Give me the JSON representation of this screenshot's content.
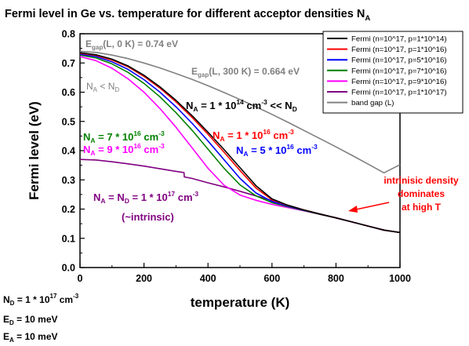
{
  "chart_data": {
    "type": "line",
    "title": "Fermi level in Ge vs. temperature for different acceptor densities N",
    "title_sub": "A",
    "xlabel": "temperature (K)",
    "ylabel": "Fermi level (eV)",
    "xlim": [
      0,
      1000
    ],
    "ylim": [
      0.0,
      0.8
    ],
    "x_ticks": [
      "0",
      "200",
      "400",
      "600",
      "800",
      "1000"
    ],
    "y_ticks": [
      "0.0",
      "0.1",
      "0.2",
      "0.3",
      "0.4",
      "0.5",
      "0.6",
      "0.7",
      "0.8"
    ],
    "grid": false,
    "legend_position": "top-right",
    "series": [
      {
        "name": "Fermi (n=10^17, p=1*10^14)",
        "color": "#000000",
        "x": [
          0,
          50,
          100,
          150,
          200,
          250,
          300,
          350,
          400,
          450,
          500,
          550,
          600,
          650,
          700,
          750,
          800,
          850,
          900,
          950,
          1000
        ],
        "y": [
          0.735,
          0.728,
          0.713,
          0.69,
          0.658,
          0.618,
          0.572,
          0.52,
          0.463,
          0.404,
          0.342,
          0.28,
          0.235,
          0.213,
          0.197,
          0.183,
          0.17,
          0.156,
          0.142,
          0.128,
          0.12
        ]
      },
      {
        "name": "Fermi (n=10^17, p=1*10^16)",
        "color": "#ff0000",
        "x": [
          0,
          50,
          100,
          150,
          200,
          250,
          300,
          350,
          400,
          450,
          500,
          550,
          600,
          650,
          700,
          750,
          800,
          850,
          900,
          950,
          1000
        ],
        "y": [
          0.733,
          0.726,
          0.71,
          0.687,
          0.654,
          0.614,
          0.567,
          0.514,
          0.456,
          0.395,
          0.332,
          0.272,
          0.232,
          0.212,
          0.197,
          0.183,
          0.17,
          0.156,
          0.142,
          0.128,
          0.12
        ]
      },
      {
        "name": "Fermi (n=10^17, p=5*10^16)",
        "color": "#0000ff",
        "x": [
          0,
          50,
          100,
          150,
          200,
          250,
          300,
          350,
          400,
          450,
          500,
          550,
          600,
          650,
          700,
          750,
          800,
          850,
          900,
          950,
          1000
        ],
        "y": [
          0.73,
          0.722,
          0.704,
          0.678,
          0.643,
          0.6,
          0.55,
          0.494,
          0.433,
          0.369,
          0.305,
          0.255,
          0.226,
          0.21,
          0.196,
          0.183,
          0.17,
          0.156,
          0.142,
          0.128,
          0.12
        ]
      },
      {
        "name": "Fermi (n=10^17, p=7*10^16)",
        "color": "#008000",
        "x": [
          0,
          50,
          100,
          150,
          200,
          250,
          300,
          350,
          400,
          450,
          500,
          550,
          600,
          650,
          700,
          750,
          800,
          850,
          900,
          950,
          1000
        ],
        "y": [
          0.727,
          0.717,
          0.697,
          0.668,
          0.63,
          0.584,
          0.53,
          0.47,
          0.405,
          0.34,
          0.283,
          0.245,
          0.222,
          0.208,
          0.195,
          0.182,
          0.17,
          0.156,
          0.142,
          0.128,
          0.12
        ]
      },
      {
        "name": "Fermi (n=10^17, p=9*10^16)",
        "color": "#ff00ff",
        "x": [
          0,
          50,
          100,
          150,
          200,
          250,
          300,
          350,
          400,
          450,
          500,
          550,
          600,
          650,
          700,
          750,
          800,
          850,
          900,
          950,
          1000
        ],
        "y": [
          0.722,
          0.708,
          0.682,
          0.646,
          0.6,
          0.544,
          0.48,
          0.41,
          0.34,
          0.282,
          0.248,
          0.23,
          0.216,
          0.205,
          0.194,
          0.182,
          0.17,
          0.156,
          0.142,
          0.128,
          0.12
        ]
      },
      {
        "name": "Fermi (n=10^17, p=1*10^17)",
        "color": "#800080",
        "x": [
          0,
          50,
          100,
          150,
          200,
          250,
          300,
          325,
          326,
          350,
          400,
          450,
          500,
          550,
          600,
          650,
          700,
          750,
          800,
          850,
          900,
          950,
          1000
        ],
        "y": [
          0.37,
          0.368,
          0.362,
          0.355,
          0.347,
          0.338,
          0.329,
          0.325,
          0.31,
          0.305,
          0.29,
          0.276,
          0.261,
          0.245,
          0.229,
          0.213,
          0.197,
          0.183,
          0.17,
          0.156,
          0.142,
          0.128,
          0.12
        ]
      },
      {
        "name": "band gap (L)",
        "color": "#808080",
        "x": [
          0,
          50,
          100,
          150,
          200,
          250,
          300,
          350,
          400,
          450,
          500,
          550,
          600,
          650,
          700,
          750,
          800,
          850,
          900,
          950,
          1000
        ],
        "y": [
          0.74,
          0.736,
          0.727,
          0.715,
          0.7,
          0.683,
          0.664,
          0.644,
          0.622,
          0.599,
          0.575,
          0.55,
          0.524,
          0.497,
          0.469,
          0.441,
          0.413,
          0.384,
          0.354,
          0.324,
          0.352
        ]
      }
    ],
    "annotations": {
      "egap0_main": "E",
      "egap0_sub": "gap",
      "egap0_rest": "(L, 0 K) = 0.74 eV",
      "egap300_main": "E",
      "egap300_sub": "gap",
      "egap300_rest": "(L, 300 K) = 0.664 eV",
      "nalt_a": "N",
      "nalt_a_sub": "A",
      "nalt_mid": " < N",
      "nalt_d_sub": "D",
      "na14_a": "N",
      "na14_a_sub": "A",
      "na14_mid": " = 1 * 10",
      "na14_exp": "14",
      "na14_unit": " cm",
      "na14_unit_exp": "-3",
      "na14_rest": " << N",
      "na14_d_sub": "D",
      "na7_a": "N",
      "na7_a_sub": "A",
      "na7_mid": " = 7 * 10",
      "na7_exp": "16",
      "na7_unit": " cm",
      "na7_unit_exp": "-3",
      "na9_a": "N",
      "na9_a_sub": "A",
      "na9_mid": " = 9 * 10",
      "na9_exp": "16",
      "na9_unit": " cm",
      "na9_unit_exp": "-3",
      "na1_a": "N",
      "na1_a_sub": "A",
      "na1_mid": " = 1 * 10",
      "na1_exp": "16",
      "na1_unit": " cm",
      "na1_unit_exp": "-3",
      "na5_a": "N",
      "na5_a_sub": "A",
      "na5_mid": " = 5 * 10",
      "na5_exp": "16",
      "na5_unit": " cm",
      "na5_unit_exp": "-3",
      "nand_a": "N",
      "nand_a_sub": "A",
      "nand_mid": " = N",
      "nand_d_sub": "D",
      "nand_val": " = 1 * 10",
      "nand_exp": "17",
      "nand_unit": " cm",
      "nand_unit_exp": "-3",
      "intrinsic_paren": "(~intrinsic)",
      "intr_line1": "intrinisic density",
      "intr_line2": "dominates",
      "intr_line3": "at high T"
    },
    "params": {
      "nd_main": "N",
      "nd_sub": "D",
      "nd_val": " = 1 * 10",
      "nd_exp": "17",
      "nd_unit": " cm",
      "nd_unit_exp": "-3",
      "ed_main": "E",
      "ed_sub": "D",
      "ed_val": " = 10 meV",
      "ea_main": "E",
      "ea_sub": "A",
      "ea_val": " = 10 meV"
    }
  }
}
